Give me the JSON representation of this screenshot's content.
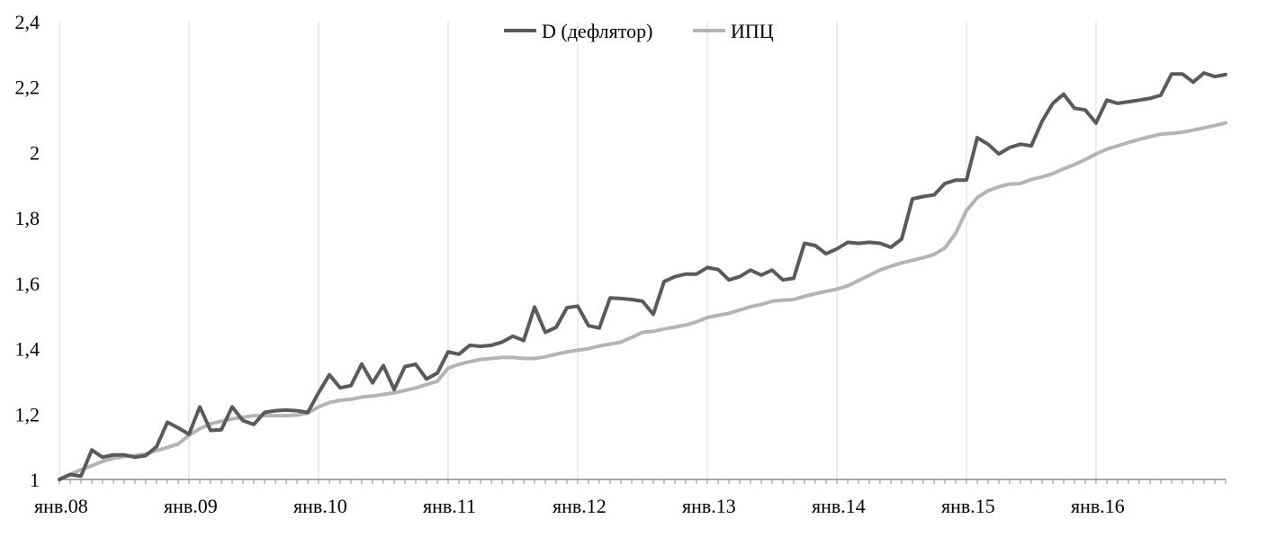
{
  "chart_data": {
    "type": "line",
    "title": "",
    "xlabel": "",
    "ylabel": "",
    "ylim": [
      1,
      2.4
    ],
    "y_ticks": [
      "1",
      "1,2",
      "1,4",
      "1,6",
      "1,8",
      "2",
      "2,2",
      "2,4"
    ],
    "y_tick_values": [
      1,
      1.2,
      1.4,
      1.6,
      1.8,
      2,
      2.2,
      2.4
    ],
    "x_tick_labels": [
      "янв.08",
      "янв.09",
      "янв.10",
      "янв.11",
      "янв.12",
      "янв.13",
      "янв.14",
      "янв.15",
      "янв.16"
    ],
    "x_range_months": "янв.08 – дек.16",
    "grid": "vertical",
    "legend": "top-center",
    "series": [
      {
        "name": "D (дефлятор)",
        "color": "#5a5a5a",
        "values": [
          1.0,
          1.015,
          1.01,
          1.09,
          1.068,
          1.075,
          1.075,
          1.068,
          1.073,
          1.1,
          1.175,
          1.158,
          1.138,
          1.222,
          1.15,
          1.152,
          1.222,
          1.18,
          1.168,
          1.205,
          1.21,
          1.212,
          1.21,
          1.205,
          1.265,
          1.32,
          1.28,
          1.287,
          1.353,
          1.295,
          1.348,
          1.275,
          1.345,
          1.352,
          1.307,
          1.325,
          1.39,
          1.383,
          1.41,
          1.407,
          1.41,
          1.42,
          1.438,
          1.425,
          1.527,
          1.45,
          1.465,
          1.525,
          1.53,
          1.47,
          1.463,
          1.555,
          1.553,
          1.55,
          1.545,
          1.505,
          1.605,
          1.62,
          1.628,
          1.628,
          1.648,
          1.642,
          1.61,
          1.62,
          1.64,
          1.625,
          1.64,
          1.61,
          1.615,
          1.722,
          1.715,
          1.69,
          1.705,
          1.725,
          1.722,
          1.725,
          1.722,
          1.71,
          1.735,
          1.858,
          1.865,
          1.87,
          1.905,
          1.915,
          1.915,
          2.045,
          2.025,
          1.995,
          2.015,
          2.025,
          2.02,
          2.095,
          2.15,
          2.178,
          2.135,
          2.13,
          2.09,
          2.16,
          2.15,
          2.155,
          2.16,
          2.165,
          2.175,
          2.24,
          2.24,
          2.215,
          2.243,
          2.232,
          2.238
        ]
      },
      {
        "name": "ИПЦ",
        "color": "#b4b4b4",
        "values": [
          1.0,
          1.015,
          1.03,
          1.042,
          1.055,
          1.065,
          1.07,
          1.073,
          1.078,
          1.088,
          1.098,
          1.108,
          1.135,
          1.155,
          1.17,
          1.178,
          1.185,
          1.19,
          1.195,
          1.195,
          1.195,
          1.195,
          1.197,
          1.203,
          1.222,
          1.235,
          1.242,
          1.245,
          1.252,
          1.255,
          1.26,
          1.265,
          1.272,
          1.28,
          1.29,
          1.3,
          1.34,
          1.352,
          1.36,
          1.367,
          1.37,
          1.373,
          1.373,
          1.37,
          1.37,
          1.375,
          1.383,
          1.39,
          1.395,
          1.4,
          1.408,
          1.414,
          1.42,
          1.434,
          1.45,
          1.453,
          1.46,
          1.466,
          1.472,
          1.482,
          1.495,
          1.502,
          1.508,
          1.518,
          1.528,
          1.535,
          1.545,
          1.548,
          1.55,
          1.56,
          1.568,
          1.575,
          1.582,
          1.592,
          1.608,
          1.624,
          1.64,
          1.652,
          1.662,
          1.67,
          1.678,
          1.688,
          1.708,
          1.752,
          1.822,
          1.862,
          1.883,
          1.895,
          1.903,
          1.905,
          1.917,
          1.925,
          1.935,
          1.95,
          1.963,
          1.978,
          1.995,
          2.01,
          2.02,
          2.03,
          2.04,
          2.048,
          2.056,
          2.058,
          2.062,
          2.068,
          2.075,
          2.082,
          2.09
        ]
      }
    ]
  }
}
